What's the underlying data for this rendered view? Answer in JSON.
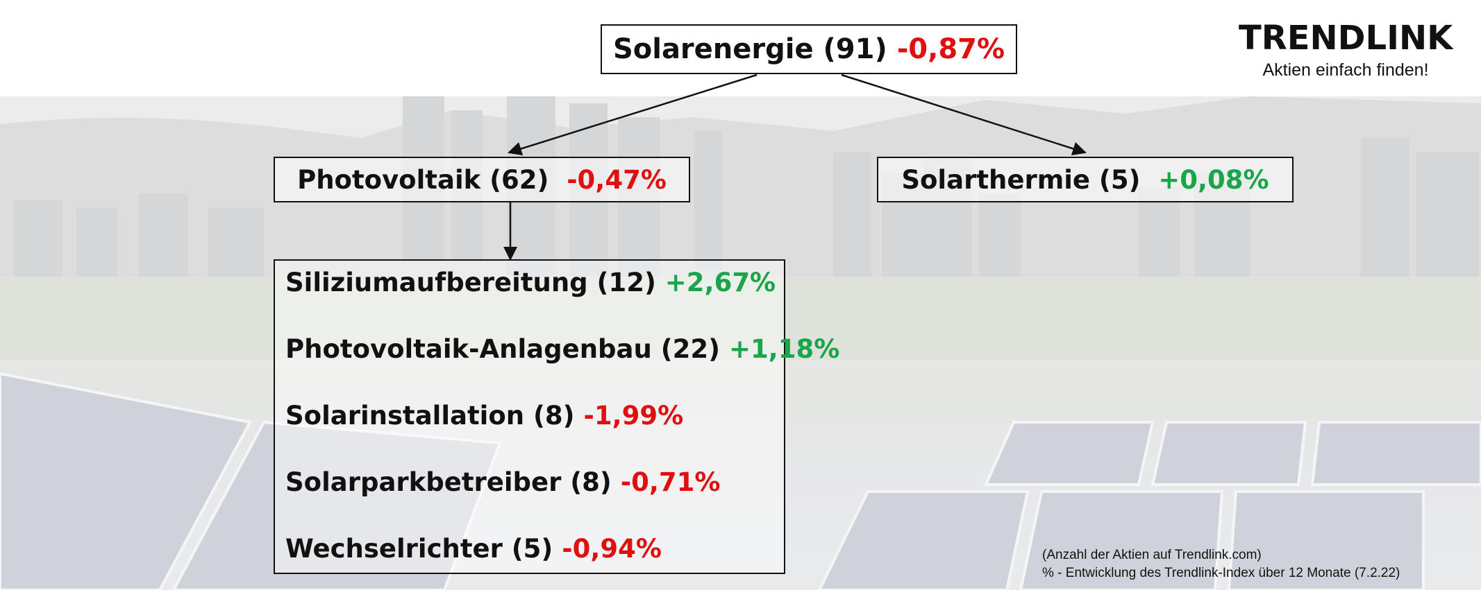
{
  "brand": {
    "name": "TRENDLINK",
    "tagline": "Aktien einfach finden!"
  },
  "root": {
    "label": "Solarenergie (91)",
    "change": "-0,87%"
  },
  "left": {
    "label": "Photovoltaik (62)",
    "change": "-0,47%"
  },
  "right": {
    "label": "Solarthermie (5)",
    "change": "+0,08%"
  },
  "subcategories": [
    {
      "label": "Siliziumaufbereitung (12)",
      "change": "+2,67%"
    },
    {
      "label": "Photovoltaik-Anlagenbau (22)",
      "change": "+1,18%"
    },
    {
      "label": "Solarinstallation (8)",
      "change": "-1,99%"
    },
    {
      "label": "Solarparkbetreiber (8)",
      "change": "-0,71%"
    },
    {
      "label": "Wechselrichter (5)",
      "change": "-0,94%"
    }
  ],
  "footnotes": {
    "line1": "(Anzahl der Aktien auf Trendlink.com)",
    "line2": "% - Entwicklung des Trendlink-Index über 12 Monate (7.2.22)"
  },
  "colors": {
    "negative": "#e01010",
    "positive": "#19a64a"
  }
}
